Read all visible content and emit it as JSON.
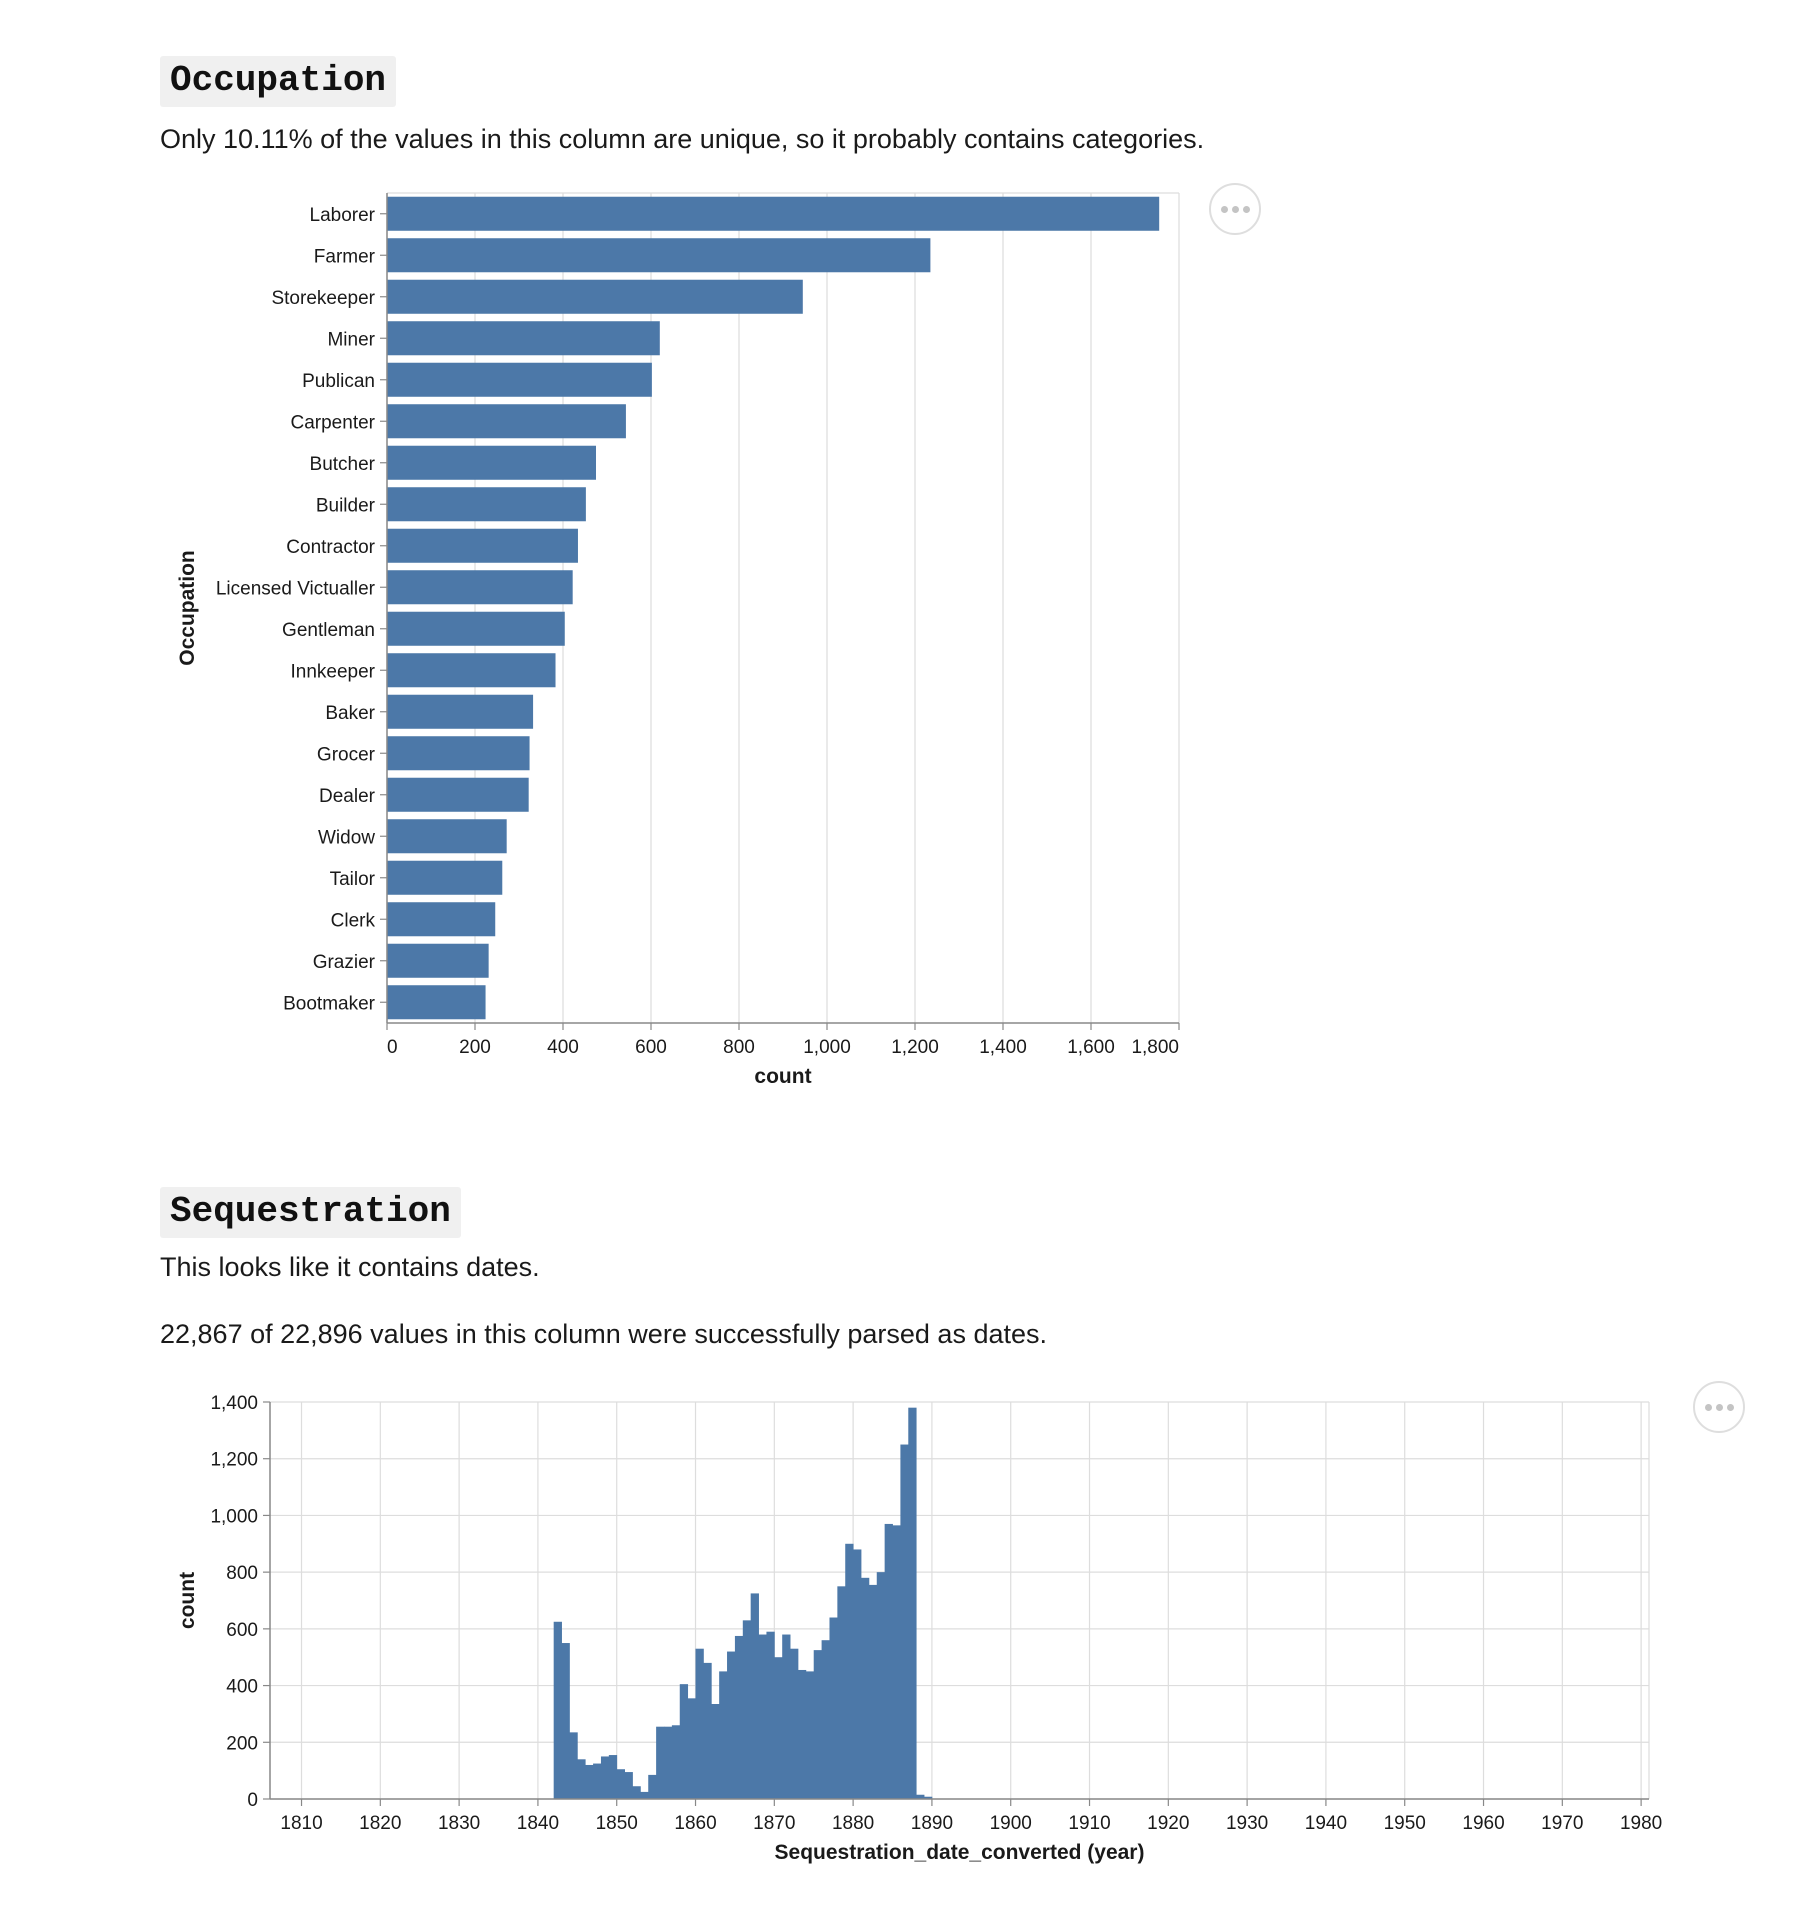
{
  "occupation": {
    "title": "Occupation",
    "description": "Only 10.11% of the values in this column are unique, so it probably contains categories."
  },
  "sequestration": {
    "title": "Sequestration",
    "description": "This looks like it contains dates.",
    "parsed_note": "22,867 of 22,896 values in this column were successfully parsed as dates."
  },
  "icons": {
    "menu": "ellipsis-icon"
  },
  "colors": {
    "bar": "#4c78a8",
    "grid": "#dddddd",
    "axis": "#888888"
  },
  "chart_data": [
    {
      "type": "bar",
      "orientation": "horizontal",
      "xlabel": "count",
      "ylabel": "Occupation",
      "xlim": [
        0,
        1800
      ],
      "x_ticks": [
        0,
        200,
        400,
        600,
        800,
        1000,
        1200,
        1400,
        1600,
        1800
      ],
      "x_tick_labels": [
        "0",
        "200",
        "400",
        "600",
        "800",
        "1,000",
        "1,200",
        "1,400",
        "1,600",
        "1,800"
      ],
      "grid": true,
      "categories": [
        "Laborer",
        "Farmer",
        "Storekeeper",
        "Miner",
        "Publican",
        "Carpenter",
        "Butcher",
        "Builder",
        "Contractor",
        "Licensed Victualler",
        "Gentleman",
        "Innkeeper",
        "Baker",
        "Grocer",
        "Dealer",
        "Widow",
        "Tailor",
        "Clerk",
        "Grazier",
        "Bootmaker"
      ],
      "values": [
        1755,
        1235,
        945,
        620,
        602,
        543,
        475,
        452,
        434,
        422,
        404,
        383,
        332,
        324,
        322,
        272,
        262,
        246,
        231,
        224
      ]
    },
    {
      "type": "bar",
      "subtype": "histogram",
      "xlabel": "Sequestration_date_converted (year)",
      "ylabel": "count",
      "xlim": [
        1806,
        1981
      ],
      "ylim": [
        0,
        1400
      ],
      "x_ticks": [
        1810,
        1820,
        1830,
        1840,
        1850,
        1860,
        1870,
        1880,
        1890,
        1900,
        1910,
        1920,
        1930,
        1940,
        1950,
        1960,
        1970,
        1980
      ],
      "x_tick_labels": [
        "1810",
        "1820",
        "1830",
        "1840",
        "1850",
        "1860",
        "1870",
        "1880",
        "1890",
        "1900",
        "1910",
        "1920",
        "1930",
        "1940",
        "1950",
        "1960",
        "1970",
        "1980"
      ],
      "y_ticks": [
        0,
        200,
        400,
        600,
        800,
        1000,
        1200,
        1400
      ],
      "y_tick_labels": [
        "0",
        "200",
        "400",
        "600",
        "800",
        "1,000",
        "1,200",
        "1,400"
      ],
      "grid": true,
      "x": [
        1842,
        1843,
        1844,
        1845,
        1846,
        1847,
        1848,
        1849,
        1850,
        1851,
        1852,
        1853,
        1854,
        1855,
        1856,
        1857,
        1858,
        1859,
        1860,
        1861,
        1862,
        1863,
        1864,
        1865,
        1866,
        1867,
        1868,
        1869,
        1870,
        1871,
        1872,
        1873,
        1874,
        1875,
        1876,
        1877,
        1878,
        1879,
        1880,
        1881,
        1882,
        1883,
        1884,
        1885,
        1886,
        1887,
        1888,
        1889
      ],
      "values": [
        625,
        550,
        235,
        140,
        120,
        125,
        150,
        155,
        105,
        95,
        45,
        25,
        85,
        255,
        255,
        260,
        405,
        355,
        530,
        480,
        335,
        450,
        520,
        575,
        630,
        725,
        580,
        590,
        500,
        580,
        530,
        455,
        450,
        525,
        560,
        640,
        750,
        900,
        880,
        780,
        755,
        800,
        970,
        965,
        1250,
        1380,
        15,
        8
      ]
    }
  ]
}
